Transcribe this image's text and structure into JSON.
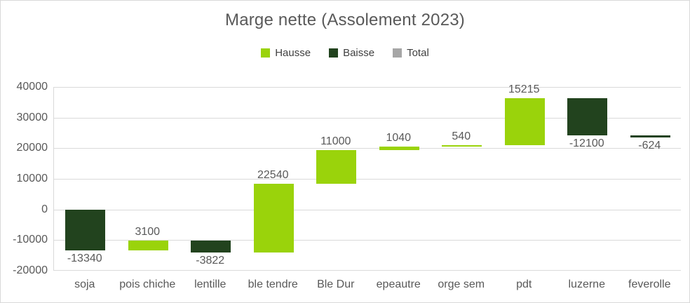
{
  "chart": {
    "title": "Marge nette (Assolement 2023)"
  },
  "chart_data": {
    "type": "bar",
    "subtype": "waterfall",
    "title": "Marge nette (Assolement 2023)",
    "categories": [
      "soja",
      "pois chiche",
      "lentille",
      "ble tendre",
      "Ble Dur",
      "epeautre",
      "orge sem",
      "pdt",
      "luzerne",
      "feverolle"
    ],
    "values": [
      -13340,
      3100,
      -3822,
      22540,
      11000,
      1040,
      540,
      15215,
      -12100,
      -624
    ],
    "data_labels": [
      "-13340",
      "3100",
      "-3822",
      "22540",
      "11000",
      "1040",
      "540",
      "15215",
      "-12100",
      "-624"
    ],
    "y_ticks": [
      40000,
      30000,
      20000,
      10000,
      0,
      -10000,
      -20000
    ],
    "ylim": [
      -20000,
      40000
    ],
    "xlabel": "",
    "ylabel": "",
    "grid": true,
    "legend_position": "top",
    "legend": [
      {
        "label": "Hausse",
        "color": "#9ad30b"
      },
      {
        "label": "Baisse",
        "color": "#22431e"
      },
      {
        "label": "Total",
        "color": "#a6a6a6"
      }
    ],
    "colors": {
      "increase": "#9ad30b",
      "decrease": "#22431e",
      "total": "#a6a6a6",
      "text": "#595959",
      "gridline": "#dadada"
    }
  }
}
